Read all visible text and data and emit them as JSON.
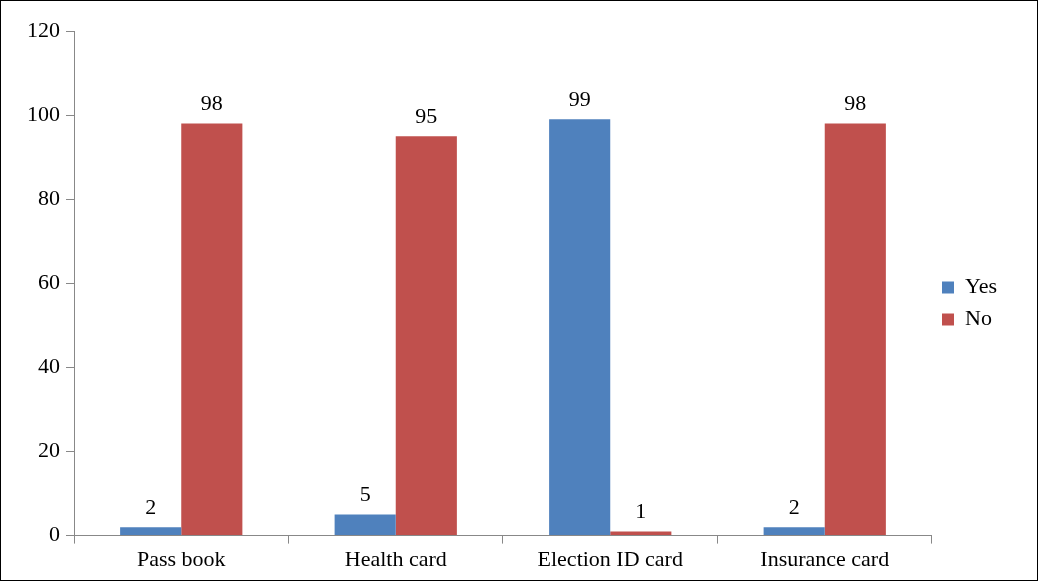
{
  "chart_data": {
    "type": "bar",
    "categories": [
      "Pass book",
      "Health card",
      "Election ID card",
      "Insurance card"
    ],
    "series": [
      {
        "name": "Yes",
        "color": "#4f81bd",
        "values": [
          2,
          5,
          99,
          2
        ]
      },
      {
        "name": "No",
        "color": "#c0504d",
        "values": [
          98,
          95,
          1,
          98
        ]
      }
    ],
    "ylim": [
      0,
      120
    ],
    "yticks": [
      0,
      20,
      40,
      60,
      80,
      100,
      120
    ],
    "grid": false,
    "legend": "right",
    "data_labels": true
  }
}
